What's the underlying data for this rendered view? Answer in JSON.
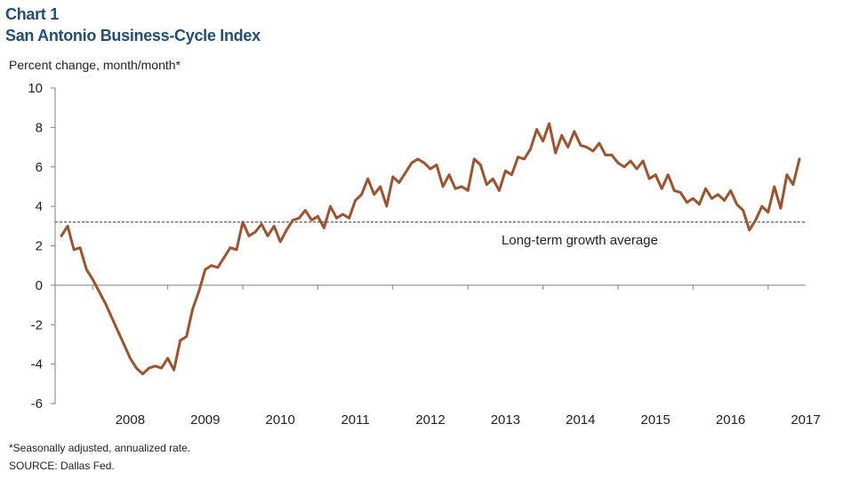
{
  "header": {
    "chart_number": "Chart 1",
    "title": "San Antonio Business-Cycle Index"
  },
  "footer": {
    "note": "*Seasonally adjusted, annualized rate.",
    "source": "SOURCE: Dallas Fed."
  },
  "colors": {
    "series": "#a0522d",
    "title": "#1f4e79",
    "axis": "#7f7f7f",
    "reference_line": "#333333"
  },
  "chart_data": {
    "type": "line",
    "title": "San Antonio Business-Cycle Index",
    "subtitle": "Chart 1",
    "ylabel": "Percent change, month/month*",
    "xlabel": "",
    "ylim": [
      -6,
      10
    ],
    "yticks": [
      -6,
      -4,
      -2,
      0,
      2,
      4,
      6,
      8,
      10
    ],
    "xlim": [
      2007.5,
      2017.5
    ],
    "xtick_labels": [
      "2008",
      "2009",
      "2010",
      "2011",
      "2012",
      "2013",
      "2014",
      "2015",
      "2016",
      "2017"
    ],
    "grid": false,
    "legend": "none",
    "annotations": [
      {
        "text": "Long-term growth average",
        "type": "horizontal-dashed-line",
        "y": 3.2
      }
    ],
    "series": [
      {
        "color": "#a0522d",
        "start": "2007-08",
        "frequency": "monthly",
        "values": [
          2.5,
          3.0,
          1.8,
          1.9,
          0.8,
          0.3,
          -0.3,
          -0.9,
          -1.6,
          -2.3,
          -3.0,
          -3.7,
          -4.2,
          -4.5,
          -4.2,
          -4.1,
          -4.2,
          -3.7,
          -4.3,
          -2.8,
          -2.6,
          -1.2,
          -0.3,
          0.8,
          1.0,
          0.9,
          1.4,
          1.9,
          1.8,
          3.2,
          2.5,
          2.7,
          3.1,
          2.5,
          3.0,
          2.2,
          2.8,
          3.3,
          3.4,
          3.8,
          3.3,
          3.5,
          2.9,
          4.0,
          3.4,
          3.6,
          3.4,
          4.3,
          4.6,
          5.4,
          4.6,
          5.0,
          4.0,
          5.5,
          5.2,
          5.7,
          6.2,
          6.4,
          6.2,
          5.9,
          6.1,
          5.0,
          5.6,
          4.9,
          5.0,
          4.8,
          6.4,
          6.1,
          5.1,
          5.4,
          4.8,
          5.8,
          5.6,
          6.5,
          6.4,
          6.9,
          7.9,
          7.3,
          8.2,
          6.7,
          7.6,
          7.0,
          7.8,
          7.1,
          7.0,
          6.8,
          7.2,
          6.6,
          6.6,
          6.2,
          6.0,
          6.3,
          5.9,
          6.3,
          5.4,
          5.6,
          4.9,
          5.6,
          4.8,
          4.7,
          4.2,
          4.4,
          4.1,
          4.9,
          4.4,
          4.6,
          4.3,
          4.8,
          4.1,
          3.8,
          2.8,
          3.3,
          4.0,
          3.7,
          5.0,
          3.9,
          5.6,
          5.1,
          6.4
        ]
      }
    ]
  }
}
